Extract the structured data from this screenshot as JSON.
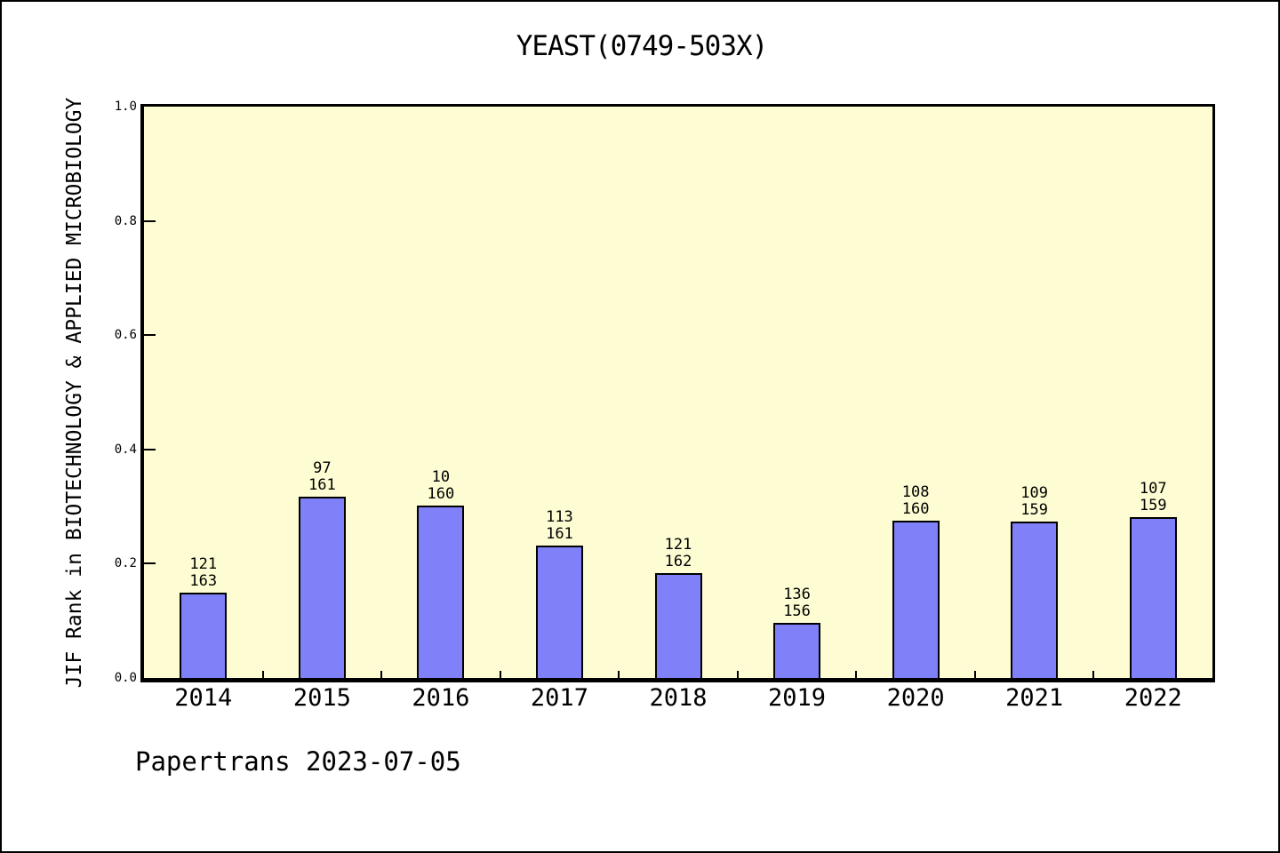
{
  "title": "YEAST(0749-503X)",
  "footer": "Papertrans 2023-07-05",
  "y_axis": {
    "label": "JIF Rank in BIOTECHNOLOGY & APPLIED MICROBIOLOGY",
    "tick_labels": [
      "0.0",
      "0.2",
      "0.4",
      "0.6",
      "0.8",
      "1.0"
    ],
    "tick_values": [
      0.0,
      0.2,
      0.4,
      0.6,
      0.8,
      1.0
    ]
  },
  "chart_data": {
    "type": "bar",
    "title": "YEAST(0749-503X)",
    "xlabel": "",
    "ylabel": "JIF Rank in BIOTECHNOLOGY & APPLIED MICROBIOLOGY",
    "ylim": [
      0.0,
      1.0
    ],
    "grid": false,
    "legend": "none",
    "categories": [
      "2014",
      "2015",
      "2016",
      "2017",
      "2018",
      "2019",
      "2020",
      "2021",
      "2022"
    ],
    "series": [
      {
        "name": "rank_label_top",
        "values": [
          121,
          97,
          10,
          113,
          121,
          136,
          108,
          109,
          107
        ]
      },
      {
        "name": "total_label_bottom",
        "values": [
          163,
          161,
          160,
          161,
          162,
          156,
          160,
          159,
          159
        ]
      }
    ],
    "bar_heights_fraction_of_axis": [
      0.149,
      0.318,
      0.301,
      0.231,
      0.183,
      0.096,
      0.276,
      0.274,
      0.281
    ],
    "colors": {
      "bar_fill": "#8080f8",
      "bar_border": "#000000",
      "plot_background": "#fdfcd2",
      "text": "#000000"
    }
  }
}
